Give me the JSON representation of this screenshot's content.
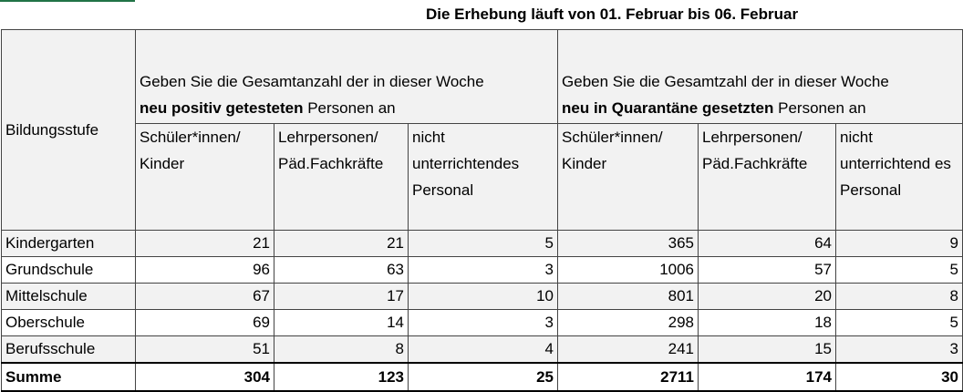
{
  "title": "Die Erhebung läuft von 01. Februar bis 06. Februar",
  "table": {
    "corner": "Bildungsstufe",
    "groups": [
      {
        "before": "Geben Sie die Gesamtanzahl der in dieser Woche",
        "bold": "neu positiv getesteten",
        "after": "Personen an"
      },
      {
        "before": "Geben Sie die Gesamtzahl der in dieser Woche",
        "bold": "neu in Quarantäne gesetzten",
        "after": "Personen an"
      }
    ],
    "columns": [
      "Schüler*innen/ Kinder",
      "Lehrpersonen/ Päd.Fachkräfte",
      "nicht unterrichtendes Personal",
      "Schüler*innen/ Kinder",
      "Lehrpersonen/ Päd.Fachkräfte",
      "nicht unterrichtend es Personal"
    ],
    "rows": [
      [
        "Kindergarten",
        21,
        21,
        5,
        365,
        64,
        9
      ],
      [
        "Grundschule",
        96,
        63,
        3,
        1006,
        57,
        5
      ],
      [
        "Mittelschule",
        67,
        17,
        10,
        801,
        20,
        8
      ],
      [
        "Oberschule",
        69,
        14,
        3,
        298,
        18,
        5
      ],
      [
        "Berufsschule",
        51,
        8,
        4,
        241,
        15,
        3
      ]
    ],
    "total": [
      "Summe",
      304,
      123,
      25,
      2711,
      174,
      30
    ]
  }
}
